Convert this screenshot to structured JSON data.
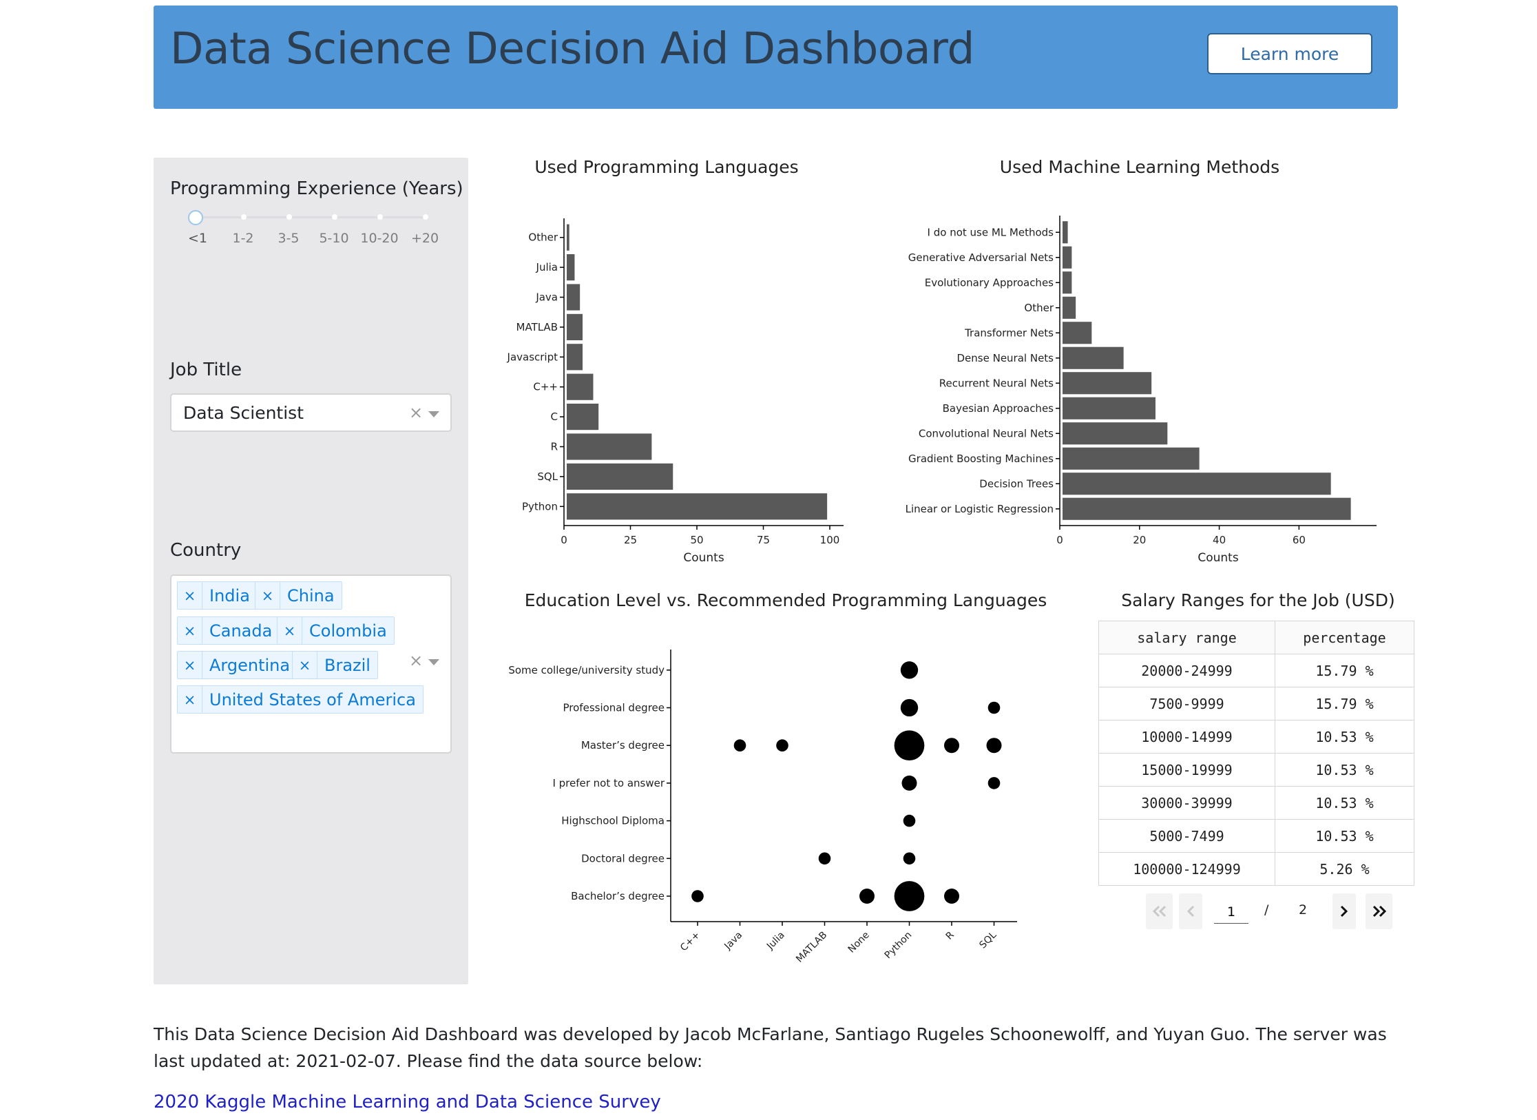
{
  "header": {
    "title": "Data Science Decision Aid Dashboard",
    "learn_more": "Learn more",
    "color": "#5196d6"
  },
  "sidebar": {
    "experience_label": "Programming Experience (Years)",
    "experience_marks": [
      "<1",
      "1-2",
      "3-5",
      "5-10",
      "10-20",
      "+20"
    ],
    "experience_selected": "<1",
    "job_label": "Job Title",
    "job_value": "Data Scientist",
    "country_label": "Country",
    "countries": [
      "India",
      "China",
      "Canada",
      "Colombia",
      "Argentina",
      "Brazil",
      "United States of America"
    ],
    "clear_symbol": "×"
  },
  "chart_data": [
    {
      "type": "bar",
      "orientation": "horizontal",
      "title": "Used Programming Languages",
      "xlabel": "Counts",
      "categories": [
        "Python",
        "SQL",
        "R",
        "C",
        "C++",
        "Javascript",
        "MATLAB",
        "Java",
        "Julia",
        "Other"
      ],
      "values": [
        99,
        41,
        33,
        13,
        11,
        7,
        7,
        6,
        4,
        2
      ],
      "xticks": [
        0,
        25,
        50,
        75,
        100
      ],
      "xlim": [
        0,
        100
      ],
      "color": "#595959"
    },
    {
      "type": "bar",
      "orientation": "horizontal",
      "title": "Used Machine Learning Methods",
      "xlabel": "Counts",
      "categories": [
        "Linear or Logistic Regression",
        "Decision Trees",
        "Gradient Boosting Machines",
        "Convolutional Neural Nets",
        "Bayesian Approaches",
        "Recurrent Neural Nets",
        "Dense Neural Nets",
        "Transformer Nets",
        "Other",
        "Evolutionary Approaches",
        "Generative Adversarial Nets",
        "I do not use ML Methods"
      ],
      "values": [
        73,
        68,
        35,
        27,
        24,
        23,
        16,
        8,
        4,
        3,
        3,
        2
      ],
      "xticks": [
        0,
        20,
        40,
        60
      ],
      "xlim": [
        0,
        76
      ],
      "color": "#595959"
    },
    {
      "type": "scatter",
      "title": "Education Level vs. Recommended Programming Languages",
      "x_categories": [
        "C++",
        "Java",
        "Julia",
        "MATLAB",
        "None",
        "Python",
        "R",
        "SQL"
      ],
      "y_categories": [
        "Bachelor’s degree",
        "Doctoral degree",
        "Highschool Diploma",
        "I prefer not to answer",
        "Master’s degree",
        "Professional degree",
        "Some college/university study"
      ],
      "points": [
        {
          "x": "C++",
          "y": "Bachelor’s degree",
          "size": 1
        },
        {
          "x": "None",
          "y": "Bachelor’s degree",
          "size": 2
        },
        {
          "x": "Python",
          "y": "Bachelor’s degree",
          "size": 12
        },
        {
          "x": "R",
          "y": "Bachelor’s degree",
          "size": 2
        },
        {
          "x": "MATLAB",
          "y": "Doctoral degree",
          "size": 1
        },
        {
          "x": "Python",
          "y": "Doctoral degree",
          "size": 1
        },
        {
          "x": "Python",
          "y": "Highschool Diploma",
          "size": 1
        },
        {
          "x": "Python",
          "y": "I prefer not to answer",
          "size": 2
        },
        {
          "x": "SQL",
          "y": "I prefer not to answer",
          "size": 1
        },
        {
          "x": "Java",
          "y": "Master’s degree",
          "size": 1
        },
        {
          "x": "Julia",
          "y": "Master’s degree",
          "size": 1
        },
        {
          "x": "Python",
          "y": "Master’s degree",
          "size": 12
        },
        {
          "x": "R",
          "y": "Master’s degree",
          "size": 2
        },
        {
          "x": "SQL",
          "y": "Master’s degree",
          "size": 2
        },
        {
          "x": "Python",
          "y": "Professional degree",
          "size": 3
        },
        {
          "x": "SQL",
          "y": "Professional degree",
          "size": 1
        },
        {
          "x": "Python",
          "y": "Some college/university study",
          "size": 3
        }
      ],
      "color": "#000000"
    }
  ],
  "salary": {
    "title": "Salary Ranges for the Job (USD)",
    "headers": [
      "salary range",
      "percentage"
    ],
    "rows": [
      [
        "20000-24999",
        "15.79 %"
      ],
      [
        "7500-9999",
        "15.79 %"
      ],
      [
        "10000-14999",
        "10.53 %"
      ],
      [
        "15000-19999",
        "10.53 %"
      ],
      [
        "30000-39999",
        "10.53 %"
      ],
      [
        "5000-7499",
        "10.53 %"
      ],
      [
        "100000-124999",
        "5.26 %"
      ]
    ],
    "page": "1",
    "page_sep": "/",
    "page_total": "2"
  },
  "footer": {
    "text": "This Data Science Decision Aid Dashboard was developed by Jacob McFarlane, Santiago Rugeles Schoonewolff, and Yuyan Guo. The server was last updated at: 2021-02-07. Please find the data source below:",
    "link": "2020 Kaggle Machine Learning and Data Science Survey"
  }
}
